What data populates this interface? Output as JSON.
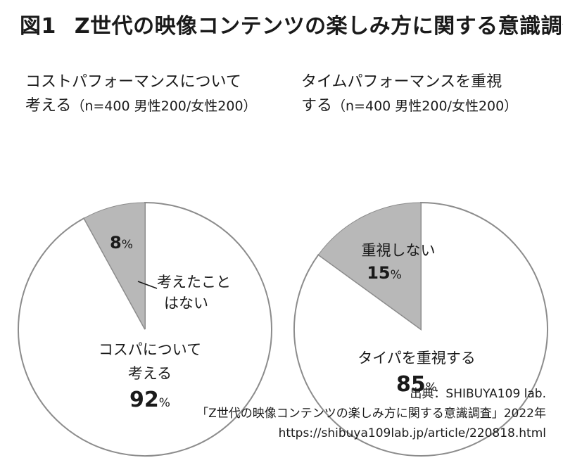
{
  "figure": {
    "number": "図1",
    "title": "Z世代の映像コンテンツの楽しみ方に関する意識調査"
  },
  "charts": [
    {
      "heading_line1": "コストパフォーマンスについて",
      "heading_line2": "考える",
      "sample": "（n=400 男性200/女性200）",
      "major_label_line1": "コスパについて",
      "major_label_line2": "考える",
      "major_pct": "92",
      "minor_label_line1": "考えたこと",
      "minor_label_line2": "はない",
      "minor_pct": "8"
    },
    {
      "heading_line1": "タイムパフォーマンスを重視",
      "heading_line2": "する",
      "sample": "（n=400 男性200/女性200）",
      "major_label_line1": "タイパを重視する",
      "major_pct": "85",
      "minor_label_line1": "重視しない",
      "minor_pct": "15"
    }
  ],
  "pct_sign": "%",
  "source": {
    "line1": "出典：SHIBUYA109 lab.",
    "line2": "「Z世代の映像コンテンツの楽しみ方に関する意識調査」2022年",
    "line3": "https://shibuya109lab.jp/article/220818.html"
  },
  "colors": {
    "minor_slice": "#b8b8b8",
    "major_slice": "#ffffff",
    "stroke": "#8c8c8c"
  },
  "chart_data": [
    {
      "type": "pie",
      "title": "コストパフォーマンスについて考える",
      "categories": [
        "コスパについて考える",
        "考えたことはない"
      ],
      "values": [
        92,
        8
      ]
    },
    {
      "type": "pie",
      "title": "タイムパフォーマンスを重視する",
      "categories": [
        "タイパを重視する",
        "重視しない"
      ],
      "values": [
        85,
        15
      ]
    }
  ]
}
